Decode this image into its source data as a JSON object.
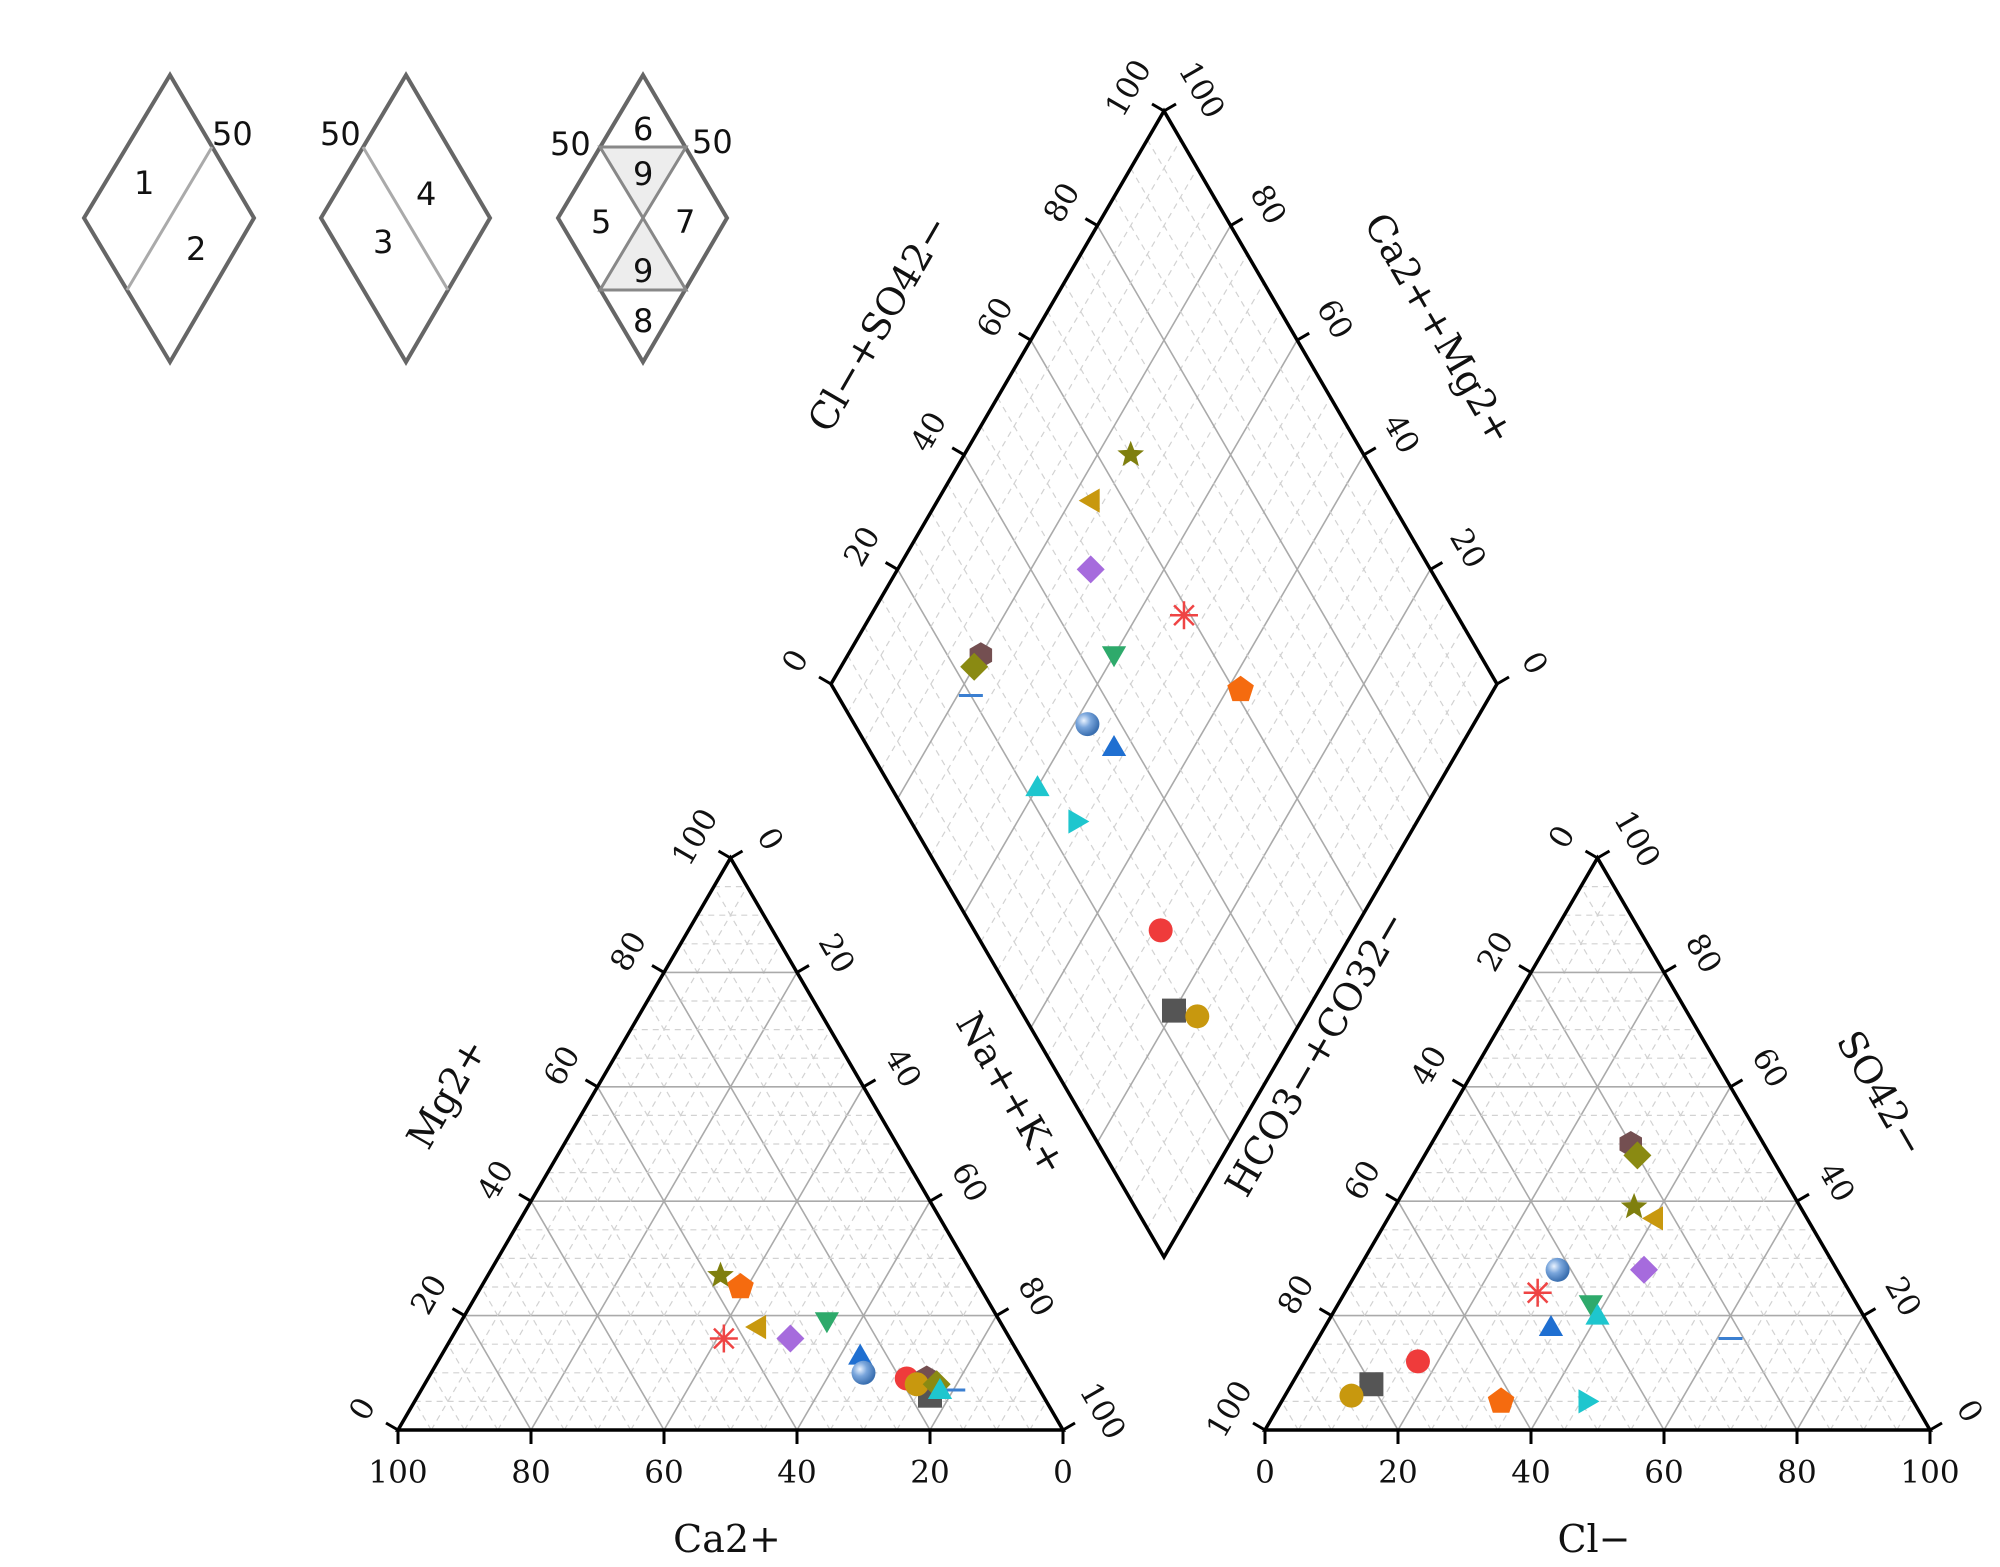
{
  "chart_data": {
    "type": "piper",
    "legend_diagrams": [
      {
        "name": "legend-diamond-1",
        "labels": [
          "1",
          "2",
          "50"
        ]
      },
      {
        "name": "legend-diamond-2",
        "labels": [
          "3",
          "4",
          "50"
        ]
      },
      {
        "name": "legend-diamond-3",
        "labels": [
          "6",
          "9",
          "5",
          "7",
          "9",
          "8",
          "50",
          "50"
        ]
      }
    ],
    "cation_triangle": {
      "xlabel": "Ca2+",
      "left_label": "Mg2+",
      "right_label": "Na++K+",
      "bottom_ticks": [
        "100",
        "80",
        "60",
        "40",
        "20",
        "0"
      ],
      "left_ticks": [
        "0",
        "20",
        "40",
        "60",
        "80",
        "100"
      ],
      "right_ticks": [
        "0",
        "20",
        "40",
        "60",
        "80",
        "100"
      ]
    },
    "anion_triangle": {
      "xlabel": "Cl−",
      "left_label": "HCO3−+CO32−",
      "right_label": "SO42−",
      "bottom_ticks": [
        "0",
        "20",
        "40",
        "60",
        "80",
        "100"
      ],
      "left_ticks": [
        "100",
        "80",
        "60",
        "40",
        "20",
        "0"
      ],
      "right_ticks": [
        "100",
        "80",
        "60",
        "40",
        "20",
        "0"
      ]
    },
    "diamond": {
      "left_label": "Cl−+SO42−",
      "right_label": "Ca2++Mg2+",
      "left_ticks": [
        "0",
        "20",
        "40",
        "60",
        "80",
        "100"
      ],
      "right_ticks": [
        "100",
        "80",
        "60",
        "40",
        "20",
        "0"
      ]
    },
    "samples": [
      {
        "marker": "square",
        "color": "#555555",
        "ca": 17,
        "mg": 6,
        "cl": 12,
        "so4": 8
      },
      {
        "marker": "circle",
        "color": "#EF3B3B",
        "ca": 19,
        "mg": 9,
        "cl": 17,
        "so4": 12
      },
      {
        "marker": "triangle-up",
        "color": "#1F6FD1",
        "ca": 24,
        "mg": 13,
        "cl": 34,
        "so4": 18
      },
      {
        "marker": "triangle-down",
        "color": "#2EAA6B",
        "ca": 26,
        "mg": 19,
        "cl": 38,
        "so4": 22
      },
      {
        "marker": "diamond",
        "color": "#A66BDD",
        "ca": 33,
        "mg": 16,
        "cl": 43,
        "so4": 28
      },
      {
        "marker": "triangle-left",
        "color": "#C8980E",
        "ca": 37,
        "mg": 18,
        "cl": 40,
        "so4": 37
      },
      {
        "marker": "triangle-right",
        "color": "#1EC6CE",
        "ca": 17,
        "mg": 8,
        "cl": 46,
        "so4": 5
      },
      {
        "marker": "hexagon",
        "color": "#744F51",
        "ca": 16,
        "mg": 9,
        "cl": 30,
        "so4": 50
      },
      {
        "marker": "star",
        "color": "#7F7F0E",
        "ca": 38,
        "mg": 27,
        "cl": 36,
        "so4": 39
      },
      {
        "marker": "pentagon",
        "color": "#F56B0F",
        "ca": 36,
        "mg": 25,
        "cl": 33,
        "so4": 5
      },
      {
        "marker": "asterisk",
        "color": "#EF4444",
        "ca": 43,
        "mg": 16,
        "cl": 29,
        "so4": 24
      },
      {
        "marker": "sphere",
        "color": "#5B8CC9",
        "ca": 25,
        "mg": 10,
        "cl": 30,
        "so4": 28
      },
      {
        "marker": "dash",
        "color": "#3B7FD1",
        "ca": 13,
        "mg": 7,
        "cl": 62,
        "so4": 16
      },
      {
        "marker": "circle",
        "color": "#C8980E",
        "ca": 18,
        "mg": 8,
        "cl": 10,
        "so4": 6
      },
      {
        "marker": "diamond",
        "color": "#8A8A12",
        "ca": 15,
        "mg": 8,
        "cl": 32,
        "so4": 48
      },
      {
        "marker": "triangle-up",
        "color": "#1EC6CE",
        "ca": 15,
        "mg": 7,
        "cl": 40,
        "so4": 20
      }
    ]
  }
}
